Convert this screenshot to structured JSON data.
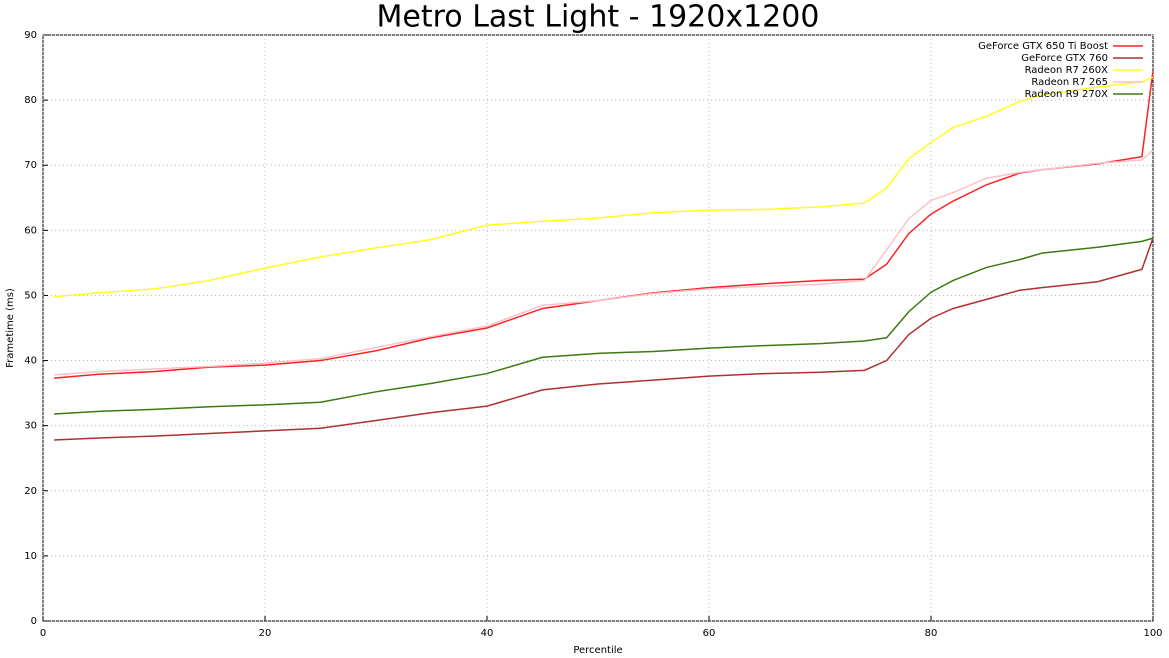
{
  "chart_data": {
    "type": "line",
    "title": "Metro Last Light - 1920x1200",
    "x_label": "Percentile",
    "y_label": "Frametime (ms)",
    "x": [
      1,
      5,
      10,
      15,
      20,
      25,
      30,
      35,
      40,
      45,
      50,
      55,
      60,
      65,
      70,
      74,
      76,
      78,
      80,
      82,
      85,
      88,
      90,
      95,
      99,
      100
    ],
    "series": [
      {
        "name": "GeForce GTX 650 Ti Boost",
        "color": "#ff2020",
        "values": [
          37.3,
          37.9,
          38.3,
          39.0,
          39.3,
          40.0,
          41.5,
          43.5,
          45.0,
          48.0,
          49.2,
          50.4,
          51.2,
          51.8,
          52.3,
          52.5,
          54.8,
          59.5,
          62.5,
          64.5,
          67.0,
          68.8,
          69.3,
          70.2,
          71.3,
          84.5
        ]
      },
      {
        "name": "GeForce GTX 760",
        "color": "#b03030",
        "values": [
          27.8,
          28.1,
          28.4,
          28.8,
          29.2,
          29.6,
          30.8,
          32.0,
          33.0,
          35.5,
          36.4,
          37.0,
          37.6,
          38.0,
          38.2,
          38.5,
          40.0,
          44.0,
          46.5,
          48.0,
          49.4,
          50.8,
          51.2,
          52.1,
          54.0,
          58.8
        ]
      },
      {
        "name": "Radeon R7 260X",
        "color": "#ffff20",
        "values": [
          49.8,
          50.4,
          51.0,
          52.3,
          54.2,
          55.9,
          57.3,
          58.6,
          60.8,
          61.4,
          61.9,
          62.7,
          63.1,
          63.2,
          63.6,
          64.2,
          66.5,
          71.0,
          73.5,
          75.8,
          77.5,
          79.8,
          80.8,
          82.0,
          82.8,
          83.5
        ]
      },
      {
        "name": "Radeon R7 265",
        "color": "#ffc0c8",
        "values": [
          37.8,
          38.3,
          38.7,
          39.1,
          39.6,
          40.3,
          42.0,
          43.7,
          45.3,
          48.5,
          49.2,
          50.3,
          51.0,
          51.4,
          51.7,
          52.3,
          57.0,
          61.8,
          64.6,
          65.8,
          68.0,
          68.9,
          69.3,
          70.3,
          70.8,
          72.3
        ]
      },
      {
        "name": "Radeon R9 270X",
        "color": "#3d7a12",
        "values": [
          31.8,
          32.2,
          32.5,
          32.9,
          33.2,
          33.6,
          35.2,
          36.5,
          38.0,
          40.5,
          41.1,
          41.4,
          41.9,
          42.3,
          42.6,
          43.0,
          43.5,
          47.5,
          50.5,
          52.3,
          54.3,
          55.5,
          56.5,
          57.4,
          58.3,
          58.8
        ]
      }
    ],
    "xlim": [
      0,
      100
    ],
    "xticks": [
      0,
      20,
      40,
      60,
      80,
      100
    ],
    "ylim": [
      0,
      90
    ],
    "yticks": [
      0,
      10,
      20,
      30,
      40,
      50,
      60,
      70,
      80,
      90
    ],
    "grid": true,
    "legend": "top-right"
  }
}
